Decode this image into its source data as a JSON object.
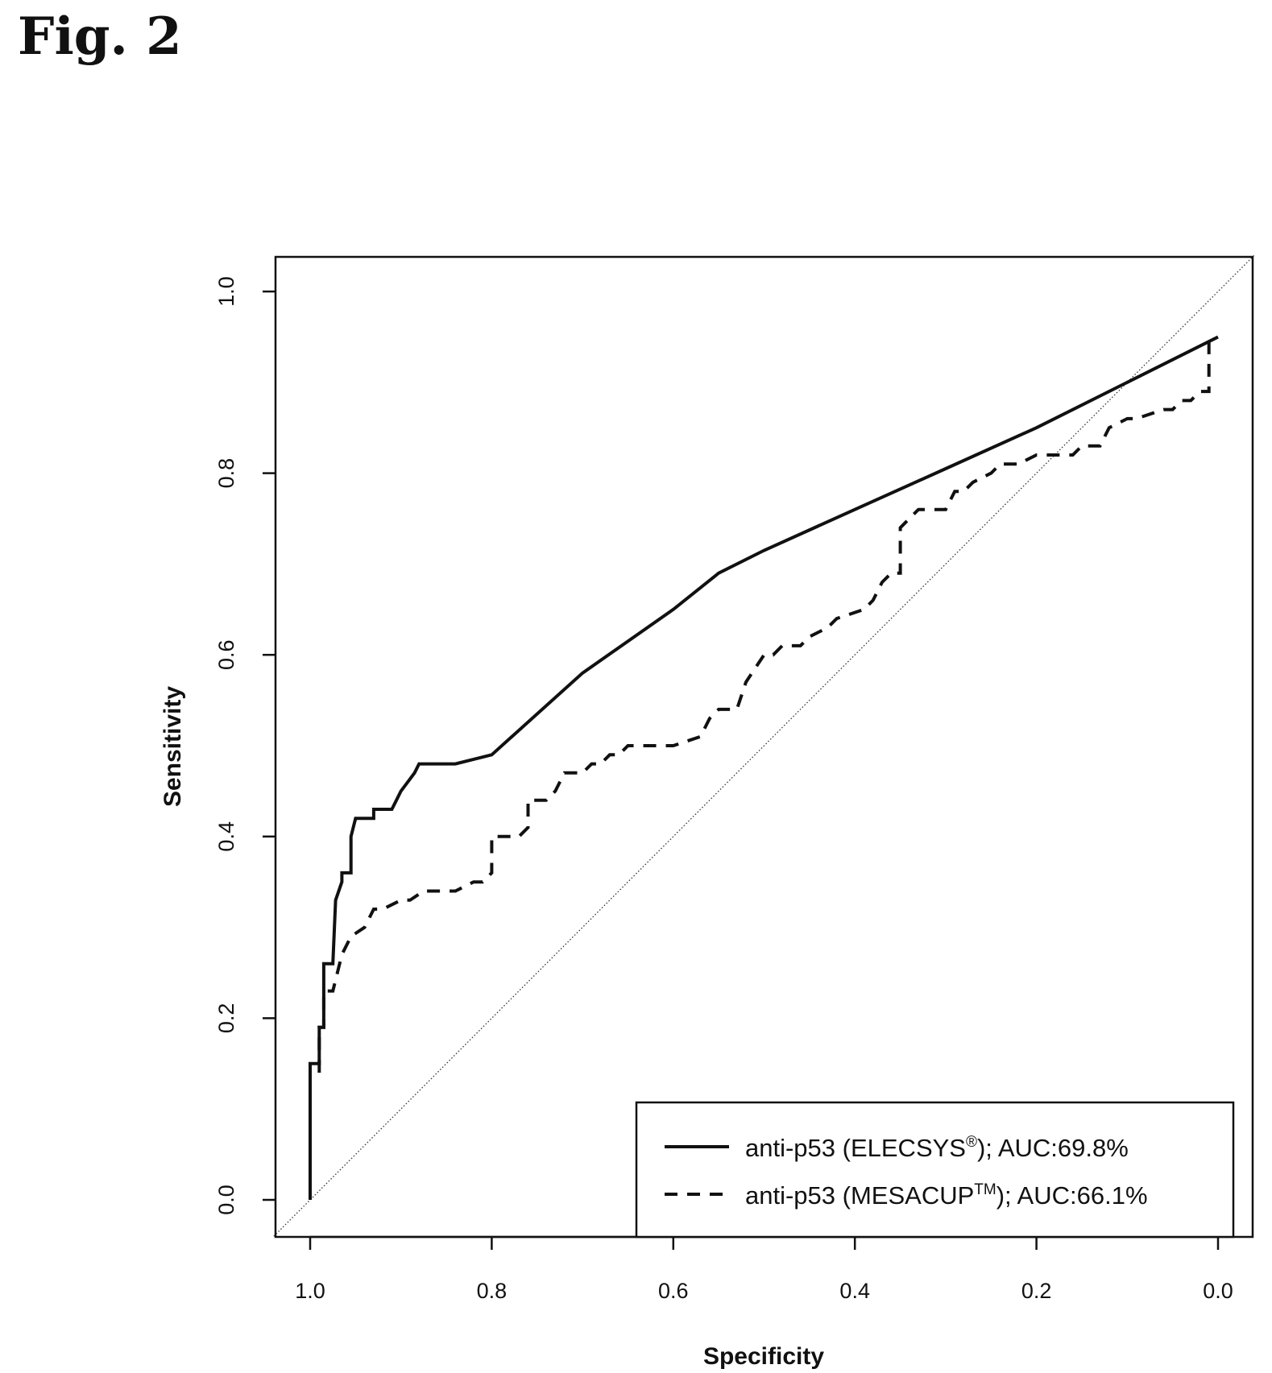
{
  "figure": {
    "label": "Fig. 2"
  },
  "chart_data": {
    "type": "line",
    "xlabel": "Specificity",
    "ylabel": "Sensitivity",
    "xlim": [
      1.0,
      0.0
    ],
    "ylim": [
      0.0,
      1.0
    ],
    "x_reversed": true,
    "xticks": [
      "1.0",
      "0.8",
      "0.6",
      "0.4",
      "0.2",
      "0.0"
    ],
    "yticks": [
      "0.0",
      "0.2",
      "0.4",
      "0.6",
      "0.8",
      "1.0"
    ],
    "grid": false,
    "legend_position": "bottom-right",
    "reference_line": {
      "from": [
        1.0,
        0.0
      ],
      "to": [
        0.0,
        1.0
      ],
      "style": "dotted"
    },
    "series": [
      {
        "name": "anti-p53 (ELECSYS®); AUC:69.8%",
        "name_parts": {
          "pre": "anti-p53 (ELECSYS",
          "sup": "®",
          "post": "); AUC:69.8%"
        },
        "style": "solid",
        "x": [
          1.0,
          1.0,
          0.997,
          0.99,
          0.99,
          0.985,
          0.985,
          0.98,
          0.975,
          0.972,
          0.965,
          0.965,
          0.955,
          0.955,
          0.95,
          0.945,
          0.93,
          0.93,
          0.925,
          0.91,
          0.905,
          0.9,
          0.885,
          0.88,
          0.86,
          0.84,
          0.82,
          0.8,
          0.7,
          0.6,
          0.55,
          0.5,
          0.4,
          0.3,
          0.2,
          0.1,
          0.0
        ],
        "y": [
          0.0,
          0.15,
          0.15,
          0.15,
          0.19,
          0.19,
          0.26,
          0.26,
          0.26,
          0.33,
          0.35,
          0.36,
          0.36,
          0.4,
          0.42,
          0.42,
          0.42,
          0.43,
          0.43,
          0.43,
          0.44,
          0.45,
          0.47,
          0.48,
          0.48,
          0.48,
          0.485,
          0.49,
          0.58,
          0.65,
          0.69,
          0.715,
          0.76,
          0.805,
          0.85,
          0.9,
          0.95
        ]
      },
      {
        "name": "anti-p53 (MESACUP™); AUC:66.1%",
        "name_parts": {
          "pre": "anti-p53 (MESACUP",
          "sup": "TM",
          "post": "); AUC:66.1%"
        },
        "style": "dashed",
        "x": [
          0.99,
          0.99,
          0.985,
          0.985,
          0.975,
          0.97,
          0.965,
          0.955,
          0.94,
          0.93,
          0.92,
          0.9,
          0.89,
          0.875,
          0.86,
          0.84,
          0.82,
          0.81,
          0.8,
          0.8,
          0.77,
          0.76,
          0.76,
          0.74,
          0.73,
          0.72,
          0.7,
          0.69,
          0.68,
          0.67,
          0.66,
          0.65,
          0.6,
          0.57,
          0.56,
          0.55,
          0.53,
          0.52,
          0.5,
          0.49,
          0.48,
          0.46,
          0.45,
          0.43,
          0.42,
          0.39,
          0.38,
          0.37,
          0.36,
          0.35,
          0.35,
          0.34,
          0.33,
          0.32,
          0.3,
          0.29,
          0.28,
          0.27,
          0.25,
          0.24,
          0.23,
          0.22,
          0.2,
          0.18,
          0.16,
          0.15,
          0.13,
          0.12,
          0.1,
          0.09,
          0.06,
          0.05,
          0.04,
          0.03,
          0.02,
          0.01,
          0.01,
          0.005
        ],
        "y": [
          0.14,
          0.19,
          0.19,
          0.23,
          0.23,
          0.25,
          0.27,
          0.29,
          0.3,
          0.32,
          0.32,
          0.33,
          0.33,
          0.34,
          0.34,
          0.34,
          0.35,
          0.35,
          0.36,
          0.4,
          0.4,
          0.41,
          0.44,
          0.44,
          0.45,
          0.47,
          0.47,
          0.48,
          0.48,
          0.49,
          0.49,
          0.5,
          0.5,
          0.51,
          0.53,
          0.54,
          0.54,
          0.57,
          0.6,
          0.6,
          0.61,
          0.61,
          0.62,
          0.63,
          0.64,
          0.65,
          0.66,
          0.68,
          0.69,
          0.69,
          0.74,
          0.75,
          0.76,
          0.76,
          0.76,
          0.78,
          0.78,
          0.79,
          0.8,
          0.81,
          0.81,
          0.81,
          0.82,
          0.82,
          0.82,
          0.83,
          0.83,
          0.85,
          0.86,
          0.86,
          0.87,
          0.87,
          0.88,
          0.88,
          0.89,
          0.89,
          0.95,
          0.95
        ]
      }
    ]
  }
}
